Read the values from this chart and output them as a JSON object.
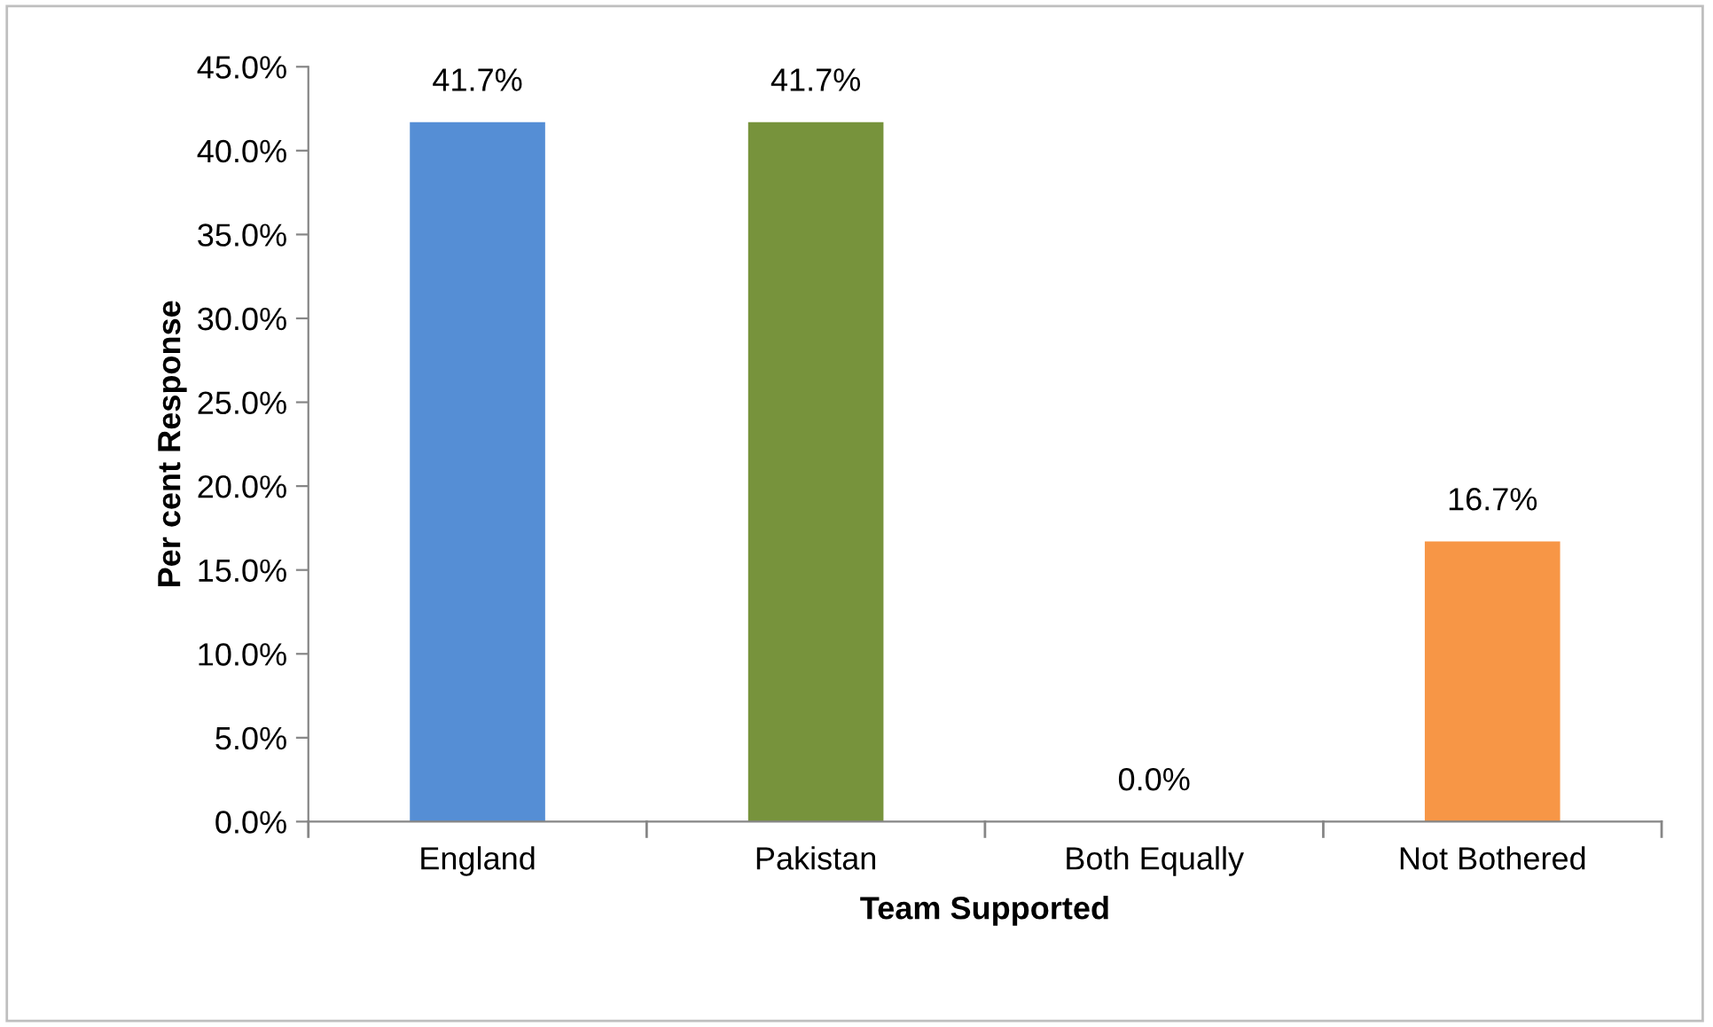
{
  "chart_data": {
    "type": "bar",
    "xlabel": "Team Supported",
    "ylabel": "Per cent Response",
    "categories": [
      "England",
      "Pakistan",
      "Both Equally",
      "Not Bothered"
    ],
    "values": [
      41.7,
      41.7,
      0.0,
      16.7
    ],
    "colors": [
      "#558ed5",
      "#77933c",
      "#8064a2",
      "#f79646"
    ],
    "value_labels": [
      "41.7%",
      "41.7%",
      "0.0%",
      "16.7%"
    ],
    "ylim": [
      0,
      45
    ],
    "yticks": [
      {
        "value": 0,
        "label": "0.0%"
      },
      {
        "value": 5,
        "label": "5.0%"
      },
      {
        "value": 10,
        "label": "10.0%"
      },
      {
        "value": 15,
        "label": "15.0%"
      },
      {
        "value": 20,
        "label": "20.0%"
      },
      {
        "value": 25,
        "label": "25.0%"
      },
      {
        "value": 30,
        "label": "30.0%"
      },
      {
        "value": 35,
        "label": "35.0%"
      },
      {
        "value": 40,
        "label": "40.0%"
      },
      {
        "value": 45,
        "label": "45.0%"
      }
    ],
    "grid": false,
    "legend": false
  }
}
